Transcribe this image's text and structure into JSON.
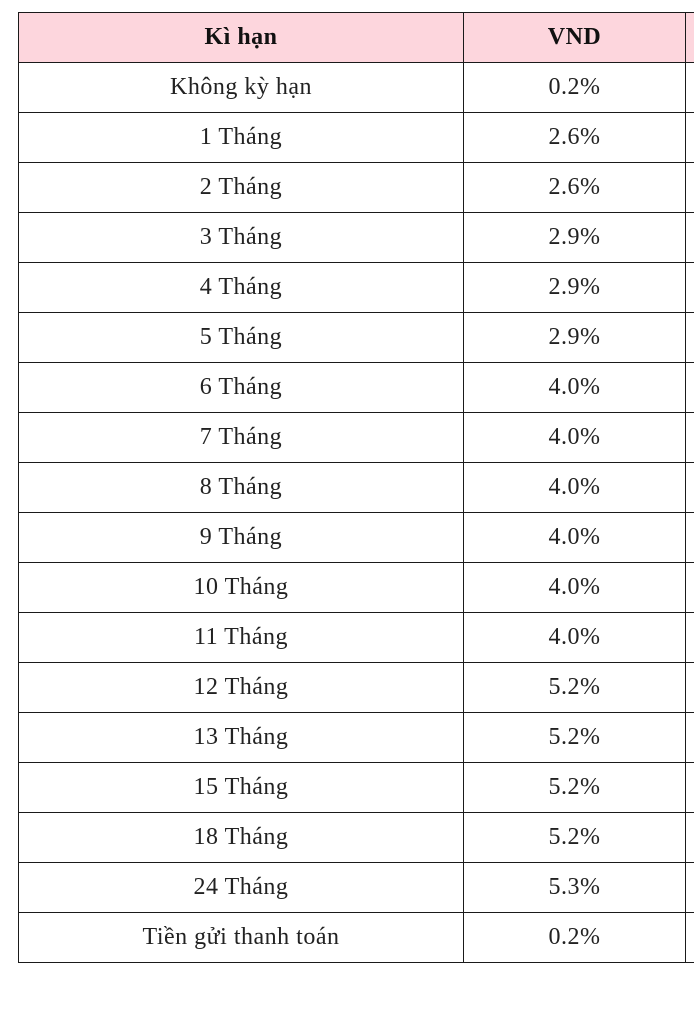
{
  "table": {
    "header": [
      "Kì hạn",
      "VND"
    ],
    "rows": [
      [
        "Không kỳ hạn",
        "0.2%"
      ],
      [
        "1 Tháng",
        "2.6%"
      ],
      [
        "2 Tháng",
        "2.6%"
      ],
      [
        "3 Tháng",
        "2.9%"
      ],
      [
        "4 Tháng",
        "2.9%"
      ],
      [
        "5 Tháng",
        "2.9%"
      ],
      [
        "6 Tháng",
        "4.0%"
      ],
      [
        "7 Tháng",
        "4.0%"
      ],
      [
        "8 Tháng",
        "4.0%"
      ],
      [
        "9 Tháng",
        "4.0%"
      ],
      [
        "10 Tháng",
        "4.0%"
      ],
      [
        "11 Tháng",
        "4.0%"
      ],
      [
        "12 Tháng",
        "5.2%"
      ],
      [
        "13 Tháng",
        "5.2%"
      ],
      [
        "15 Tháng",
        "5.2%"
      ],
      [
        "18 Tháng",
        "5.2%"
      ],
      [
        "24 Tháng",
        "5.3%"
      ],
      [
        "Tiền gửi thanh toán",
        "0.2%"
      ]
    ]
  }
}
